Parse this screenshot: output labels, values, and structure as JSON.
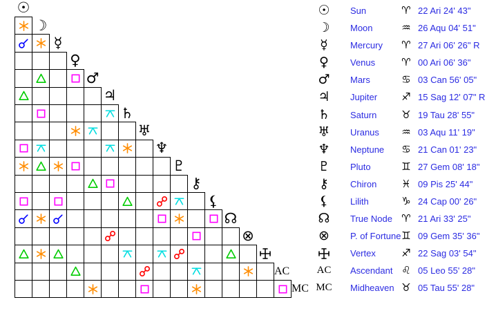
{
  "colors": {
    "background": "#ffffff",
    "grid_line": "#000000",
    "glyph": "#000000",
    "legend_text": "#2b2be2"
  },
  "aspect_types": {
    "conjunction": {
      "label": "conjunction",
      "color": "#0000ff"
    },
    "sextile": {
      "label": "sextile",
      "color": "#ff8c00"
    },
    "square": {
      "label": "square",
      "color": "#ff00ff"
    },
    "trine": {
      "label": "trine",
      "color": "#00cc00"
    },
    "opposition": {
      "label": "opposition",
      "color": "#ff0000"
    },
    "quincunx": {
      "label": "quincunx",
      "color": "#00dde0"
    }
  },
  "planets": [
    {
      "id": "sun",
      "name": "Sun",
      "glyph": "☉",
      "sign": "♈",
      "position": "22 Ari 24' 43\""
    },
    {
      "id": "moon",
      "name": "Moon",
      "glyph": "☽",
      "sign": "♒",
      "position": "26 Aqu 04' 51\""
    },
    {
      "id": "mercury",
      "name": "Mercury",
      "glyph": "☿",
      "sign": "♈",
      "position": "27 Ari 06' 26\" R"
    },
    {
      "id": "venus",
      "name": "Venus",
      "glyph": "♀",
      "sign": "♈",
      "position": "00 Ari 06' 36\""
    },
    {
      "id": "mars",
      "name": "Mars",
      "glyph": "♂",
      "sign": "♋",
      "position": "03 Can 56' 05\""
    },
    {
      "id": "jupiter",
      "name": "Jupiter",
      "glyph": "♃",
      "sign": "♐",
      "position": "15 Sag 12' 07\" R"
    },
    {
      "id": "saturn",
      "name": "Saturn",
      "glyph": "♄",
      "sign": "♉",
      "position": "19 Tau 28' 55\""
    },
    {
      "id": "uranus",
      "name": "Uranus",
      "glyph": "♅",
      "sign": "♒",
      "position": "03 Aqu 11' 19\""
    },
    {
      "id": "neptune",
      "name": "Neptune",
      "glyph": "♆",
      "sign": "♋",
      "position": "21 Can 01' 23\""
    },
    {
      "id": "pluto",
      "name": "Pluto",
      "glyph": "♇",
      "sign": "♊",
      "position": "27 Gem 08' 18\""
    },
    {
      "id": "chiron",
      "name": "Chiron",
      "glyph": "⚷",
      "sign": "♓",
      "position": "09 Pis 25' 44\""
    },
    {
      "id": "lilith",
      "name": "Lilith",
      "glyph": "⚸",
      "sign": "♑",
      "position": "24 Cap 00' 26\""
    },
    {
      "id": "true-node",
      "name": "True Node",
      "glyph": "☊",
      "sign": "♈",
      "position": "21 Ari 33' 25\""
    },
    {
      "id": "fortune",
      "name": "P. of Fortune",
      "glyph": "⊗",
      "sign": "♊",
      "position": "09 Gem 35' 36\""
    },
    {
      "id": "vertex",
      "name": "Vertex",
      "glyph": "",
      "icon": "vertex-cross",
      "sign": "♐",
      "position": "22 Sag 03' 54\""
    },
    {
      "id": "ascendant",
      "name": "Ascendant",
      "glyph": "AC",
      "text_glyph": true,
      "sign": "♌",
      "position": "05 Leo 55' 28\""
    },
    {
      "id": "midheaven",
      "name": "Midheaven",
      "glyph": "MC",
      "text_glyph": true,
      "sign": "♉",
      "position": "05 Tau 55' 28\""
    }
  ],
  "aspects": [
    {
      "a": "moon",
      "b": "sun",
      "type": "sextile"
    },
    {
      "a": "mercury",
      "b": "sun",
      "type": "conjunction"
    },
    {
      "a": "mercury",
      "b": "moon",
      "type": "sextile"
    },
    {
      "a": "mars",
      "b": "moon",
      "type": "trine"
    },
    {
      "a": "mars",
      "b": "venus",
      "type": "square"
    },
    {
      "a": "jupiter",
      "b": "sun",
      "type": "trine"
    },
    {
      "a": "saturn",
      "b": "moon",
      "type": "square"
    },
    {
      "a": "saturn",
      "b": "jupiter",
      "type": "quincunx"
    },
    {
      "a": "uranus",
      "b": "venus",
      "type": "sextile"
    },
    {
      "a": "uranus",
      "b": "mars",
      "type": "quincunx"
    },
    {
      "a": "neptune",
      "b": "sun",
      "type": "square"
    },
    {
      "a": "neptune",
      "b": "moon",
      "type": "quincunx"
    },
    {
      "a": "neptune",
      "b": "jupiter",
      "type": "quincunx"
    },
    {
      "a": "neptune",
      "b": "saturn",
      "type": "sextile"
    },
    {
      "a": "pluto",
      "b": "sun",
      "type": "sextile"
    },
    {
      "a": "pluto",
      "b": "moon",
      "type": "trine"
    },
    {
      "a": "pluto",
      "b": "mercury",
      "type": "sextile"
    },
    {
      "a": "pluto",
      "b": "venus",
      "type": "square"
    },
    {
      "a": "chiron",
      "b": "mars",
      "type": "trine"
    },
    {
      "a": "chiron",
      "b": "jupiter",
      "type": "square"
    },
    {
      "a": "lilith",
      "b": "sun",
      "type": "square"
    },
    {
      "a": "lilith",
      "b": "mercury",
      "type": "square"
    },
    {
      "a": "lilith",
      "b": "saturn",
      "type": "trine"
    },
    {
      "a": "lilith",
      "b": "neptune",
      "type": "opposition"
    },
    {
      "a": "lilith",
      "b": "pluto",
      "type": "quincunx"
    },
    {
      "a": "true-node",
      "b": "sun",
      "type": "conjunction"
    },
    {
      "a": "true-node",
      "b": "moon",
      "type": "sextile"
    },
    {
      "a": "true-node",
      "b": "mercury",
      "type": "conjunction"
    },
    {
      "a": "true-node",
      "b": "neptune",
      "type": "square"
    },
    {
      "a": "true-node",
      "b": "pluto",
      "type": "sextile"
    },
    {
      "a": "true-node",
      "b": "lilith",
      "type": "square"
    },
    {
      "a": "fortune",
      "b": "jupiter",
      "type": "opposition"
    },
    {
      "a": "fortune",
      "b": "chiron",
      "type": "square"
    },
    {
      "a": "vertex",
      "b": "sun",
      "type": "trine"
    },
    {
      "a": "vertex",
      "b": "moon",
      "type": "sextile"
    },
    {
      "a": "vertex",
      "b": "mercury",
      "type": "trine"
    },
    {
      "a": "vertex",
      "b": "saturn",
      "type": "quincunx"
    },
    {
      "a": "vertex",
      "b": "neptune",
      "type": "quincunx"
    },
    {
      "a": "vertex",
      "b": "pluto",
      "type": "opposition"
    },
    {
      "a": "vertex",
      "b": "true-node",
      "type": "trine"
    },
    {
      "a": "ascendant",
      "b": "venus",
      "type": "trine"
    },
    {
      "a": "ascendant",
      "b": "uranus",
      "type": "opposition"
    },
    {
      "a": "ascendant",
      "b": "chiron",
      "type": "quincunx"
    },
    {
      "a": "ascendant",
      "b": "fortune",
      "type": "sextile"
    },
    {
      "a": "midheaven",
      "b": "mars",
      "type": "sextile"
    },
    {
      "a": "midheaven",
      "b": "uranus",
      "type": "square"
    },
    {
      "a": "midheaven",
      "b": "chiron",
      "type": "sextile"
    },
    {
      "a": "midheaven",
      "b": "ascendant",
      "type": "square"
    }
  ]
}
